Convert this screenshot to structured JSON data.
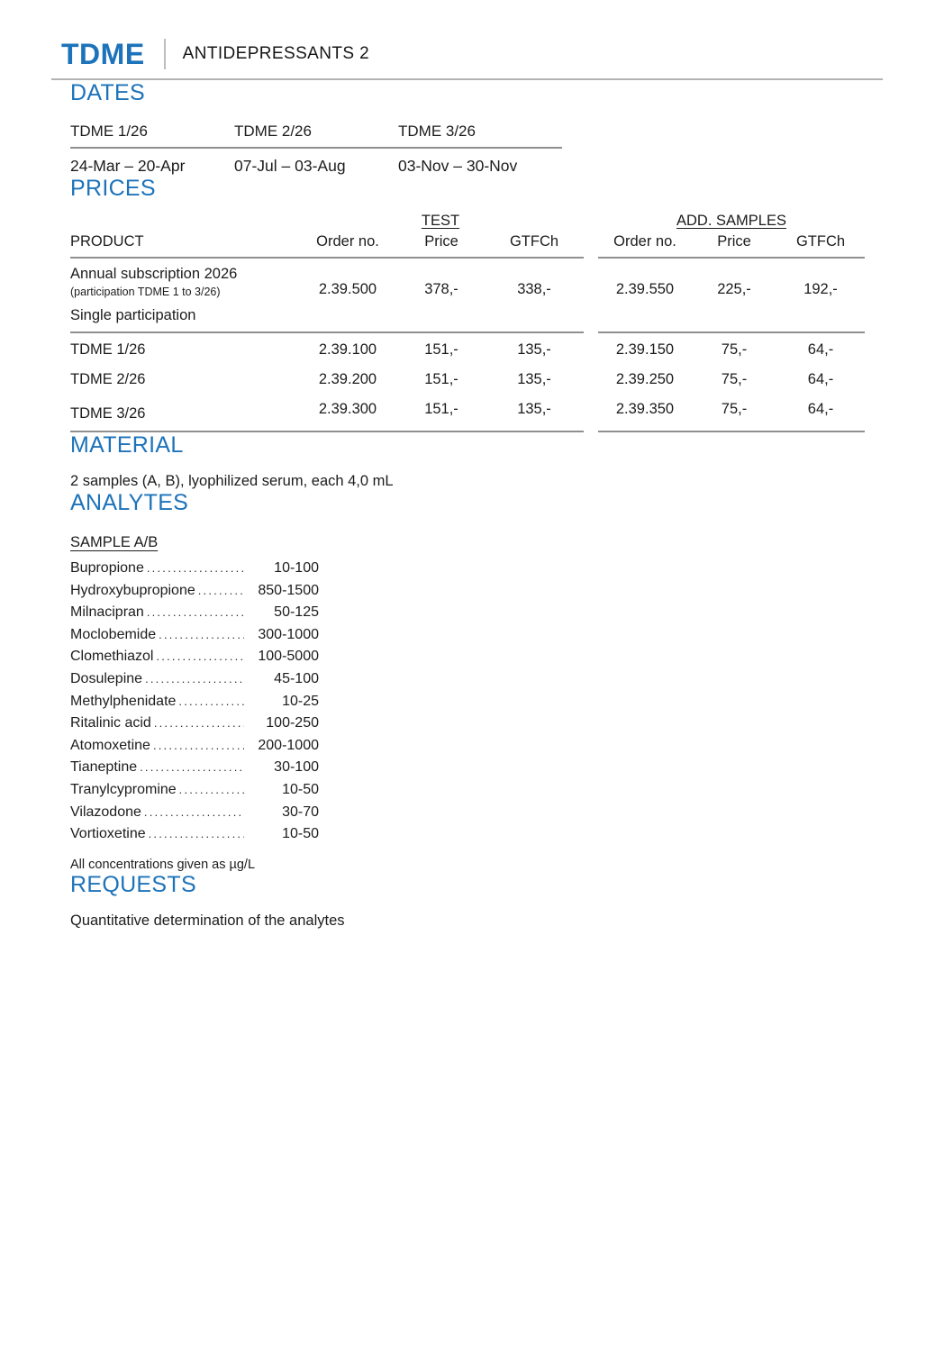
{
  "colors": {
    "accent": "#1d73ba",
    "text": "#1c1c1c",
    "rule_gray": "#8f8f8f"
  },
  "header": {
    "logo": "TDME",
    "title": "ANTIDEPRESSANTS 2"
  },
  "dates": {
    "heading": "DATES",
    "cols": [
      {
        "label": "TDME 1/26",
        "range": "24-Mar – 20-Apr"
      },
      {
        "label": "TDME 2/26",
        "range": "07-Jul – 03-Aug"
      },
      {
        "label": "TDME 3/26",
        "range": "03-Nov – 30-Nov"
      }
    ]
  },
  "prices": {
    "heading": "PRICES",
    "groups": {
      "test": "TEST",
      "add": "ADD. SAMPLES"
    },
    "columns": {
      "product": "PRODUCT",
      "order": "Order no.",
      "price": "Price",
      "gtfch": "GTFCh"
    },
    "annual": {
      "product": "Annual subscription 2026",
      "note": "(participation TDME 1 to 3/26)",
      "test": {
        "order": "2.39.500",
        "price": "378,-",
        "gtfch": "338,-"
      },
      "add": {
        "order": "2.39.550",
        "price": "225,-",
        "gtfch": "192,-"
      }
    },
    "single_label": "Single participation",
    "rows": [
      {
        "product": "TDME 1/26",
        "test": {
          "order": "2.39.100",
          "price": "151,-",
          "gtfch": "135,-"
        },
        "add": {
          "order": "2.39.150",
          "price": "75,-",
          "gtfch": "64,-"
        }
      },
      {
        "product": "TDME 2/26",
        "test": {
          "order": "2.39.200",
          "price": "151,-",
          "gtfch": "135,-"
        },
        "add": {
          "order": "2.39.250",
          "price": "75,-",
          "gtfch": "64,-"
        }
      },
      {
        "product": "TDME 3/26",
        "test": {
          "order": "2.39.300",
          "price": "151,-",
          "gtfch": "135,-"
        },
        "add": {
          "order": "2.39.350",
          "price": "75,-",
          "gtfch": "64,-"
        }
      }
    ]
  },
  "material": {
    "heading": "MATERIAL",
    "text": "2 samples (A, B), lyophilized serum, each 4,0 mL"
  },
  "analytes": {
    "heading": "ANALYTES",
    "sample_label": "SAMPLE A/B",
    "items": [
      {
        "name": "Bupropione",
        "range": "10-100"
      },
      {
        "name": "Hydroxybupropione",
        "range": "850-1500"
      },
      {
        "name": "Milnacipran",
        "range": "50-125"
      },
      {
        "name": "Moclobemide",
        "range": "300-1000"
      },
      {
        "name": "Clomethiazol",
        "range": "100-5000"
      },
      {
        "name": "Dosulepine",
        "range": "45-100"
      },
      {
        "name": "Methylphenidate",
        "range": "10-25"
      },
      {
        "name": "Ritalinic acid",
        "range": "100-250"
      },
      {
        "name": "Atomoxetine",
        "range": "200-1000"
      },
      {
        "name": "Tianeptine",
        "range": "30-100"
      },
      {
        "name": "Tranylcypromine",
        "range": "10-50"
      },
      {
        "name": "Vilazodone",
        "range": "30-70"
      },
      {
        "name": "Vortioxetine",
        "range": "10-50"
      }
    ],
    "footnote": "All concentrations given as µg/L"
  },
  "requests": {
    "heading": "REQUESTS",
    "text": "Quantitative determination of the analytes"
  }
}
